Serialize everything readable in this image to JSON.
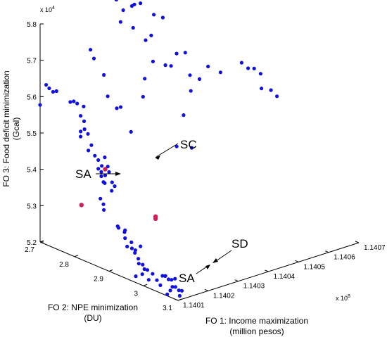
{
  "chart_data": {
    "type": "scatter3d",
    "title": "",
    "xlabel_line1": "FO 1: Income maximization",
    "xlabel_line2": "(million pesos)",
    "ylabel_line1": "FO 2: NPE minimization",
    "ylabel_line2": "(DU)",
    "zlabel_line1": "FO 3: Food deficit minimization",
    "zlabel_line2": "(Gcal)",
    "x_multiplier": "x 10",
    "x_multiplier_exp": "8",
    "z_multiplier": "x 10",
    "z_multiplier_exp": "4",
    "xlim": [
      1.1401,
      1.1407
    ],
    "ylim": [
      2.7,
      3.1
    ],
    "zlim": [
      5.2,
      5.8
    ],
    "x_ticks": [
      "1.1401",
      "1.1402",
      "1.1403",
      "1.1404",
      "1.1405",
      "1.1406",
      "1.1407"
    ],
    "y_ticks": [
      "2.7",
      "2.8",
      "2.9",
      "3",
      "3.1"
    ],
    "z_ticks": [
      "5.2",
      "5.3",
      "5.4",
      "5.5",
      "5.6",
      "5.7",
      "5.8"
    ],
    "grid": false,
    "colors": {
      "points": "#1010e0",
      "highlight": "#d0205a",
      "axis": "#000000"
    },
    "annotations": [
      {
        "label": "SC",
        "target": "SC"
      },
      {
        "label": "SA",
        "target": "SA1"
      },
      {
        "label": "SD",
        "target": "SD"
      },
      {
        "label": "SA",
        "target": "SA2"
      }
    ],
    "highlighted_points": [
      {
        "id": "SC",
        "x": 1.14011,
        "y": 2.88,
        "z": 5.47
      },
      {
        "id": "SA1",
        "x": 1.1401,
        "y": 2.82,
        "z": 5.35
      },
      {
        "id": "SD",
        "x": 1.14014,
        "y": 3.0,
        "z": 5.38
      },
      {
        "id": "SA2",
        "x": 1.14014,
        "y": 3.0,
        "z": 5.374
      }
    ],
    "points": [
      {
        "x": 1.1401,
        "y": 2.7,
        "z": 5.577
      },
      {
        "x": 1.14013,
        "y": 2.7,
        "z": 5.615
      },
      {
        "x": 1.14012,
        "y": 2.7,
        "z": 5.627
      },
      {
        "x": 1.14012,
        "y": 2.72,
        "z": 5.616
      },
      {
        "x": 1.14012,
        "y": 2.73,
        "z": 5.622
      },
      {
        "x": 1.14012,
        "y": 2.77,
        "z": 5.608
      },
      {
        "x": 1.14012,
        "y": 2.78,
        "z": 5.614
      },
      {
        "x": 1.14012,
        "y": 2.79,
        "z": 5.612
      },
      {
        "x": 1.14013,
        "y": 2.8,
        "z": 5.605
      },
      {
        "x": 1.14012,
        "y": 2.8,
        "z": 5.582
      },
      {
        "x": 1.14012,
        "y": 2.81,
        "z": 5.571
      },
      {
        "x": 1.14011,
        "y": 2.82,
        "z": 5.556
      },
      {
        "x": 1.14011,
        "y": 2.83,
        "z": 5.547
      },
      {
        "x": 1.14012,
        "y": 2.8,
        "z": 5.539
      },
      {
        "x": 1.14012,
        "y": 2.8,
        "z": 5.525
      },
      {
        "x": 1.1401,
        "y": 2.84,
        "z": 5.508
      },
      {
        "x": 1.14011,
        "y": 2.84,
        "z": 5.52
      },
      {
        "x": 1.14011,
        "y": 2.85,
        "z": 5.495
      },
      {
        "x": 1.14011,
        "y": 2.86,
        "z": 5.487
      },
      {
        "x": 1.14012,
        "y": 2.87,
        "z": 5.496
      },
      {
        "x": 1.14011,
        "y": 2.86,
        "z": 5.463
      },
      {
        "x": 1.14011,
        "y": 2.87,
        "z": 5.475
      },
      {
        "x": 1.14012,
        "y": 2.86,
        "z": 5.452
      },
      {
        "x": 1.1401,
        "y": 2.9,
        "z": 5.473
      },
      {
        "x": 1.14011,
        "y": 2.9,
        "z": 5.442
      },
      {
        "x": 1.14011,
        "y": 2.88,
        "z": 5.453
      },
      {
        "x": 1.14012,
        "y": 2.86,
        "z": 5.44
      },
      {
        "x": 1.14012,
        "y": 2.87,
        "z": 5.425
      },
      {
        "x": 1.14013,
        "y": 2.87,
        "z": 5.468
      },
      {
        "x": 1.14013,
        "y": 2.89,
        "z": 5.422
      },
      {
        "x": 1.14012,
        "y": 2.89,
        "z": 5.412
      },
      {
        "x": 1.14015,
        "y": 2.84,
        "z": 5.408
      },
      {
        "x": 1.14014,
        "y": 2.84,
        "z": 5.365
      },
      {
        "x": 1.14015,
        "y": 2.84,
        "z": 5.347
      },
      {
        "x": 1.14014,
        "y": 2.85,
        "z": 5.338
      },
      {
        "x": 1.14014,
        "y": 2.89,
        "z": 5.309
      },
      {
        "x": 1.14012,
        "y": 2.91,
        "z": 5.318
      },
      {
        "x": 1.14013,
        "y": 2.92,
        "z": 5.313
      },
      {
        "x": 1.14014,
        "y": 2.91,
        "z": 5.301
      },
      {
        "x": 1.14013,
        "y": 2.92,
        "z": 5.291
      },
      {
        "x": 1.14014,
        "y": 2.93,
        "z": 5.281
      },
      {
        "x": 1.14013,
        "y": 2.94,
        "z": 5.271
      },
      {
        "x": 1.14013,
        "y": 2.95,
        "z": 5.27
      },
      {
        "x": 1.14014,
        "y": 2.94,
        "z": 5.256
      },
      {
        "x": 1.14014,
        "y": 2.95,
        "z": 5.244
      },
      {
        "x": 1.14013,
        "y": 2.96,
        "z": 5.237
      },
      {
        "x": 1.14012,
        "y": 2.98,
        "z": 5.245
      },
      {
        "x": 1.14016,
        "y": 2.9,
        "z": 5.252
      },
      {
        "x": 1.14017,
        "y": 2.93,
        "z": 5.262
      },
      {
        "x": 1.14011,
        "y": 3.03,
        "z": 5.225
      },
      {
        "x": 1.14011,
        "y": 3.04,
        "z": 5.215
      },
      {
        "x": 1.14011,
        "y": 3.06,
        "z": 5.198
      },
      {
        "x": 1.14012,
        "y": 3.06,
        "z": 5.206
      },
      {
        "x": 1.14013,
        "y": 3.0,
        "z": 5.225
      },
      {
        "x": 1.14012,
        "y": 2.96,
        "z": 5.205
      },
      {
        "x": 1.14013,
        "y": 2.97,
        "z": 5.212
      },
      {
        "x": 1.14014,
        "y": 2.98,
        "z": 5.198
      },
      {
        "x": 1.14016,
        "y": 2.95,
        "z": 5.21
      },
      {
        "x": 1.14017,
        "y": 2.95,
        "z": 5.205
      },
      {
        "x": 1.14014,
        "y": 3.02,
        "z": 5.225
      },
      {
        "x": 1.14015,
        "y": 3.02,
        "z": 5.222
      },
      {
        "x": 1.14016,
        "y": 3.01,
        "z": 5.215
      },
      {
        "x": 1.14016,
        "y": 3.02,
        "z": 5.21
      },
      {
        "x": 1.14017,
        "y": 3.02,
        "z": 5.206
      },
      {
        "x": 1.14017,
        "y": 3.03,
        "z": 5.213
      },
      {
        "x": 1.14015,
        "y": 3.04,
        "z": 5.2
      },
      {
        "x": 1.14016,
        "y": 3.04,
        "z": 5.197
      },
      {
        "x": 1.14016,
        "y": 3.05,
        "z": 5.192
      },
      {
        "x": 1.14017,
        "y": 3.05,
        "z": 5.188
      },
      {
        "x": 1.14014,
        "y": 3.07,
        "z": 5.19
      },
      {
        "x": 1.14021,
        "y": 2.75,
        "z": 5.72
      },
      {
        "x": 1.14021,
        "y": 2.76,
        "z": 5.7
      },
      {
        "x": 1.14022,
        "y": 2.78,
        "z": 5.66
      },
      {
        "x": 1.14021,
        "y": 2.8,
        "z": 5.612
      },
      {
        "x": 1.14023,
        "y": 2.82,
        "z": 5.585
      },
      {
        "x": 1.14024,
        "y": 2.8,
        "z": 5.571
      },
      {
        "x": 1.14023,
        "y": 2.85,
        "z": 5.529
      },
      {
        "x": 1.14031,
        "y": 2.7,
        "z": 5.87
      },
      {
        "x": 1.1403,
        "y": 2.71,
        "z": 5.86
      },
      {
        "x": 1.14034,
        "y": 2.71,
        "z": 5.842
      },
      {
        "x": 1.14033,
        "y": 2.72,
        "z": 5.814
      },
      {
        "x": 1.14033,
        "y": 2.74,
        "z": 5.793
      },
      {
        "x": 1.14031,
        "y": 2.75,
        "z": 5.77
      },
      {
        "x": 1.14034,
        "y": 2.76,
        "z": 5.75
      },
      {
        "x": 1.14037,
        "y": 2.73,
        "z": 5.79
      },
      {
        "x": 1.14039,
        "y": 2.72,
        "z": 5.785
      },
      {
        "x": 1.14041,
        "y": 2.72,
        "z": 5.783
      },
      {
        "x": 1.14044,
        "y": 2.71,
        "z": 5.82
      },
      {
        "x": 1.14047,
        "y": 2.71,
        "z": 5.82
      },
      {
        "x": 1.14042,
        "y": 2.75,
        "z": 5.761
      },
      {
        "x": 1.14045,
        "y": 2.75,
        "z": 5.745
      },
      {
        "x": 1.14037,
        "y": 2.77,
        "z": 5.712
      },
      {
        "x": 1.1404,
        "y": 2.76,
        "z": 5.713
      },
      {
        "x": 1.14036,
        "y": 2.8,
        "z": 5.668
      },
      {
        "x": 1.14031,
        "y": 2.82,
        "z": 5.642
      },
      {
        "x": 1.14027,
        "y": 2.85,
        "z": 5.615
      },
      {
        "x": 1.14039,
        "y": 2.81,
        "z": 5.654
      },
      {
        "x": 1.14045,
        "y": 2.79,
        "z": 5.662
      },
      {
        "x": 1.14042,
        "y": 2.8,
        "z": 5.64
      },
      {
        "x": 1.14049,
        "y": 2.78,
        "z": 5.65
      },
      {
        "x": 1.14046,
        "y": 2.82,
        "z": 5.612
      },
      {
        "x": 1.14044,
        "y": 2.84,
        "z": 5.582
      },
      {
        "x": 1.14037,
        "y": 2.88,
        "z": 5.55
      },
      {
        "x": 1.14029,
        "y": 2.93,
        "z": 5.505
      },
      {
        "x": 1.14034,
        "y": 2.93,
        "z": 5.488
      },
      {
        "x": 1.14048,
        "y": 2.83,
        "z": 5.6
      },
      {
        "x": 1.14052,
        "y": 2.82,
        "z": 5.62
      },
      {
        "x": 1.14055,
        "y": 2.83,
        "z": 5.6
      },
      {
        "x": 1.14062,
        "y": 2.83,
        "z": 5.608
      },
      {
        "x": 1.14063,
        "y": 2.84,
        "z": 5.594
      },
      {
        "x": 1.14065,
        "y": 2.84,
        "z": 5.588
      },
      {
        "x": 1.14066,
        "y": 2.85,
        "z": 5.575
      },
      {
        "x": 1.14064,
        "y": 2.87,
        "z": 5.548
      },
      {
        "x": 1.14066,
        "y": 2.88,
        "z": 5.542
      },
      {
        "x": 1.14068,
        "y": 2.88,
        "z": 5.52
      }
    ]
  }
}
